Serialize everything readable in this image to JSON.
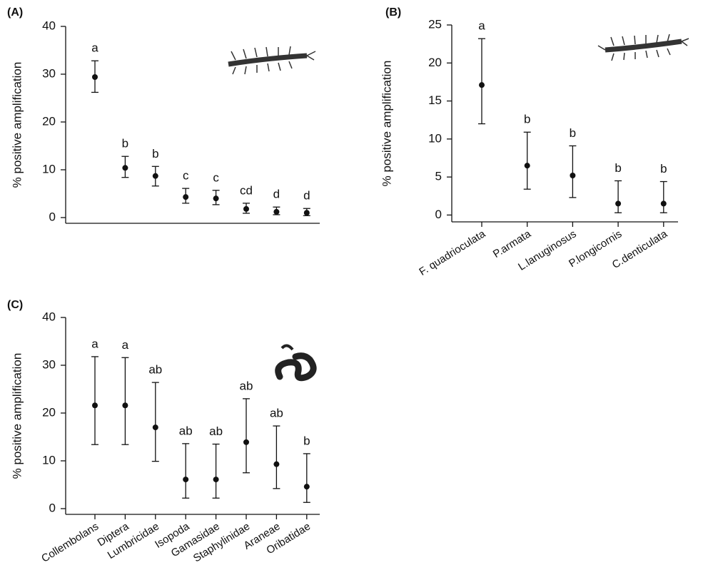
{
  "chart_data": [
    {
      "type": "errorbar",
      "title": "(A)",
      "y_label": "% positive amplification",
      "categories": [
        null,
        null,
        null,
        null,
        null,
        null,
        null,
        null
      ],
      "values": [
        29.4,
        10.4,
        8.7,
        4.3,
        4.0,
        1.8,
        1.2,
        1.0
      ],
      "lower": [
        26.2,
        8.4,
        6.6,
        3.0,
        2.7,
        0.9,
        0.6,
        0.4
      ],
      "upper": [
        32.8,
        12.8,
        10.7,
        6.1,
        5.7,
        3.0,
        2.2,
        1.9
      ],
      "letters": [
        "a",
        "b",
        "b",
        "c",
        "c",
        "cd",
        "d",
        "d"
      ],
      "color": "#111111",
      "ylim": [
        -1.2,
        40
      ],
      "yticks": [
        0,
        10,
        20,
        30,
        40
      ]
    },
    {
      "type": "errorbar",
      "title": "(B)",
      "y_label": "% positive amplification",
      "categories": [
        "F. quadrioculata",
        "P.armata",
        "L.lanuginosus",
        "P.longicornis",
        "C.denticulata"
      ],
      "values": [
        17.1,
        6.5,
        5.2,
        1.5,
        1.5
      ],
      "lower": [
        12.0,
        3.4,
        2.3,
        0.3,
        0.3
      ],
      "upper": [
        23.2,
        10.9,
        9.1,
        4.5,
        4.4
      ],
      "letters": [
        "a",
        "b",
        "b",
        "b",
        "b"
      ],
      "color": "#111111",
      "ylim": [
        -0.9,
        25
      ],
      "yticks": [
        0,
        5,
        10,
        15,
        20,
        25
      ]
    },
    {
      "type": "errorbar",
      "title": "(C)",
      "y_label": "% positive amplification",
      "categories": [
        "Collembolans",
        "Diptera",
        "Lumbricidae",
        "Isopoda",
        "Gamasidae",
        "Staphylinidae",
        "Araneae",
        "Oribatidae"
      ],
      "values": [
        21.6,
        21.6,
        17.0,
        6.1,
        6.1,
        13.9,
        9.3,
        4.6
      ],
      "lower": [
        13.4,
        13.4,
        9.9,
        2.2,
        2.2,
        7.5,
        4.2,
        1.3
      ],
      "upper": [
        31.8,
        31.6,
        26.4,
        13.6,
        13.5,
        23.0,
        17.3,
        11.5
      ],
      "letters": [
        "a",
        "a",
        "ab",
        "ab",
        "ab",
        "ab",
        "ab",
        "b"
      ],
      "color": "#111111",
      "ylim": [
        -1.2,
        40
      ],
      "yticks": [
        0,
        10,
        20,
        30,
        40
      ]
    }
  ]
}
